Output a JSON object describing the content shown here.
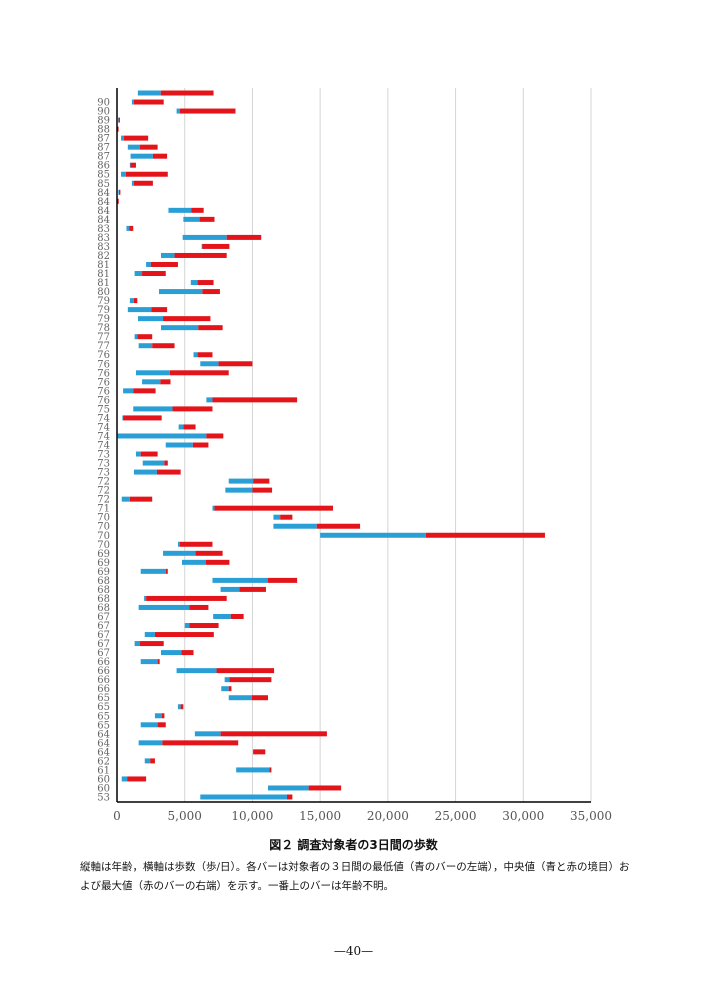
{
  "chart_data": {
    "type": "bar",
    "orientation": "horizontal-range",
    "title": "図２ 調査対象者の3日間の歩数",
    "xlabel": "",
    "ylabel": "",
    "xlim": [
      0,
      35000
    ],
    "x_ticks": [
      "0",
      "5,000",
      "10,000",
      "15,000",
      "20,000",
      "25,000",
      "30,000",
      "35,000"
    ],
    "x_tick_values": [
      0,
      5000,
      10000,
      15000,
      20000,
      25000,
      30000,
      35000
    ],
    "grid": "vertical",
    "series_colors": {
      "min_to_median": "#2a9fd6",
      "median_to_max": "#e3151b"
    },
    "rows": [
      {
        "age": "",
        "min": 1540,
        "median": 3230,
        "max": 7130
      },
      {
        "age": "90",
        "min": 1100,
        "median": 1250,
        "max": 3450
      },
      {
        "age": "90",
        "min": 4400,
        "median": 4630,
        "max": 8750
      },
      {
        "age": "89",
        "min": 80,
        "median": 120,
        "max": 220
      },
      {
        "age": "88",
        "min": 0,
        "median": 30,
        "max": 60
      },
      {
        "age": "87",
        "min": 300,
        "median": 500,
        "max": 2300
      },
      {
        "age": "87",
        "min": 800,
        "median": 1700,
        "max": 3000
      },
      {
        "age": "87",
        "min": 1000,
        "median": 2650,
        "max": 3700
      },
      {
        "age": "86",
        "min": 950,
        "median": 1000,
        "max": 1400
      },
      {
        "age": "85",
        "min": 300,
        "median": 650,
        "max": 3750
      },
      {
        "age": "85",
        "min": 1100,
        "median": 1250,
        "max": 2650
      },
      {
        "age": "84",
        "min": 100,
        "median": 150,
        "max": 250
      },
      {
        "age": "84",
        "min": 20,
        "median": 40,
        "max": 80
      },
      {
        "age": "84",
        "min": 3800,
        "median": 5500,
        "max": 6400
      },
      {
        "age": "84",
        "min": 4900,
        "median": 6100,
        "max": 7200
      },
      {
        "age": "83",
        "min": 700,
        "median": 900,
        "max": 1200
      },
      {
        "age": "83",
        "min": 4850,
        "median": 8100,
        "max": 10650
      },
      {
        "age": "83",
        "min": 6250,
        "median": 6300,
        "max": 8300
      },
      {
        "age": "82",
        "min": 3250,
        "median": 4250,
        "max": 8100
      },
      {
        "age": "81",
        "min": 2150,
        "median": 2500,
        "max": 4500
      },
      {
        "age": "81",
        "min": 1300,
        "median": 1850,
        "max": 3600
      },
      {
        "age": "81",
        "min": 5450,
        "median": 5950,
        "max": 7130
      },
      {
        "age": "80",
        "min": 3100,
        "median": 6300,
        "max": 7600
      },
      {
        "age": "79",
        "min": 950,
        "median": 1250,
        "max": 1500
      },
      {
        "age": "79",
        "min": 800,
        "median": 2550,
        "max": 3700
      },
      {
        "age": "79",
        "min": 1550,
        "median": 3400,
        "max": 6900
      },
      {
        "age": "78",
        "min": 3250,
        "median": 6000,
        "max": 7800
      },
      {
        "age": "77",
        "min": 1300,
        "median": 1500,
        "max": 2600
      },
      {
        "age": "77",
        "min": 1600,
        "median": 2600,
        "max": 4250
      },
      {
        "age": "76",
        "min": 5650,
        "median": 5950,
        "max": 7050
      },
      {
        "age": "76",
        "min": 6150,
        "median": 7500,
        "max": 10000
      },
      {
        "age": "76",
        "min": 1400,
        "median": 3900,
        "max": 8250
      },
      {
        "age": "76",
        "min": 1850,
        "median": 3200,
        "max": 3950
      },
      {
        "age": "76",
        "min": 450,
        "median": 1200,
        "max": 2850
      },
      {
        "age": "76",
        "min": 6600,
        "median": 7050,
        "max": 13300
      },
      {
        "age": "75",
        "min": 1200,
        "median": 4100,
        "max": 7050
      },
      {
        "age": "74",
        "min": 400,
        "median": 450,
        "max": 3300
      },
      {
        "age": "74",
        "min": 4550,
        "median": 4900,
        "max": 5800
      },
      {
        "age": "74",
        "min": 50,
        "median": 6600,
        "max": 7850
      },
      {
        "age": "74",
        "min": 3600,
        "median": 5600,
        "max": 6750
      },
      {
        "age": "73",
        "min": 1400,
        "median": 1750,
        "max": 3000
      },
      {
        "age": "73",
        "min": 1900,
        "median": 3500,
        "max": 3750
      },
      {
        "age": "73",
        "min": 1250,
        "median": 2950,
        "max": 4700
      },
      {
        "age": "72",
        "min": 8250,
        "median": 10050,
        "max": 11250
      },
      {
        "age": "72",
        "min": 8000,
        "median": 10000,
        "max": 11450
      },
      {
        "age": "72",
        "min": 350,
        "median": 950,
        "max": 2600
      },
      {
        "age": "71",
        "min": 7050,
        "median": 7200,
        "max": 15950
      },
      {
        "age": "70",
        "min": 11550,
        "median": 12050,
        "max": 12950
      },
      {
        "age": "70",
        "min": 11550,
        "median": 14750,
        "max": 17950
      },
      {
        "age": "70",
        "min": 15000,
        "median": 22800,
        "max": 31600
      },
      {
        "age": "70",
        "min": 4500,
        "median": 4650,
        "max": 7050
      },
      {
        "age": "69",
        "min": 3400,
        "median": 5800,
        "max": 7800
      },
      {
        "age": "69",
        "min": 4800,
        "median": 6550,
        "max": 8300
      },
      {
        "age": "69",
        "min": 1750,
        "median": 3600,
        "max": 3750
      },
      {
        "age": "68",
        "min": 7050,
        "median": 11150,
        "max": 13300
      },
      {
        "age": "68",
        "min": 7650,
        "median": 9050,
        "max": 11000
      },
      {
        "age": "68",
        "min": 2000,
        "median": 2150,
        "max": 8100
      },
      {
        "age": "68",
        "min": 1600,
        "median": 5350,
        "max": 6750
      },
      {
        "age": "67",
        "min": 7100,
        "median": 8400,
        "max": 9350
      },
      {
        "age": "67",
        "min": 5000,
        "median": 5350,
        "max": 7500
      },
      {
        "age": "67",
        "min": 2050,
        "median": 2800,
        "max": 7150
      },
      {
        "age": "67",
        "min": 1300,
        "median": 1700,
        "max": 3450
      },
      {
        "age": "67",
        "min": 3250,
        "median": 4750,
        "max": 5650
      },
      {
        "age": "66",
        "min": 1750,
        "median": 3000,
        "max": 3150
      },
      {
        "age": "66",
        "min": 4400,
        "median": 7350,
        "max": 11600
      },
      {
        "age": "66",
        "min": 7950,
        "median": 8300,
        "max": 11400
      },
      {
        "age": "66",
        "min": 7700,
        "median": 8250,
        "max": 8450
      },
      {
        "age": "65",
        "min": 8250,
        "median": 9950,
        "max": 11150
      },
      {
        "age": "65",
        "min": 4500,
        "median": 4700,
        "max": 4900
      },
      {
        "age": "65",
        "min": 2800,
        "median": 3300,
        "max": 3500
      },
      {
        "age": "65",
        "min": 1750,
        "median": 3000,
        "max": 3600
      },
      {
        "age": "64",
        "min": 5750,
        "median": 7650,
        "max": 15500
      },
      {
        "age": "64",
        "min": 1600,
        "median": 3350,
        "max": 8950
      },
      {
        "age": "64",
        "min": 10050,
        "median": 10050,
        "max": 10950
      },
      {
        "age": "62",
        "min": 2050,
        "median": 2450,
        "max": 2800
      },
      {
        "age": "61",
        "min": 8800,
        "median": 11250,
        "max": 11400
      },
      {
        "age": "60",
        "min": 350,
        "median": 750,
        "max": 2150
      },
      {
        "age": "60",
        "min": 11150,
        "median": 14150,
        "max": 16550
      },
      {
        "age": "53",
        "min": 6150,
        "median": 12550,
        "max": 12950
      }
    ]
  },
  "caption": "図２ 調査対象者の3日間の歩数",
  "note": "縦軸は年齢，横軸は歩数（歩/日）。各バーは対象者の３日間の最低値（青のバーの左端），中央値（青と赤の境目）および最大値（赤のバーの右端）を示す。一番上のバーは年齢不明。",
  "page_number": "—40—"
}
